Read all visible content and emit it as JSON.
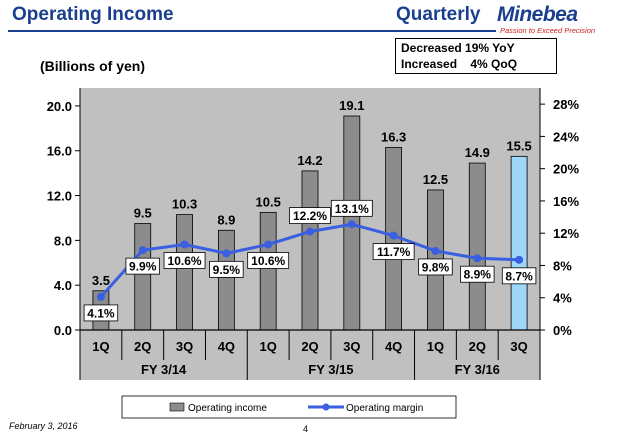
{
  "header": {
    "title": "Operating Income",
    "period": "Quarterly",
    "logo_name": "Minebea",
    "logo_tagline": "Passion to Exceed Precision"
  },
  "summary": {
    "line1": "Decreased 19% YoY",
    "line2": "Increased    4% QoQ"
  },
  "footer": {
    "date": "February 3, 2016",
    "page_number": "4"
  },
  "colors": {
    "plot_bg": "#c0c0c0",
    "bar_gray": "#8c8c8c",
    "bar_highlight": "#9fd6fa",
    "line_blue": "#3a5fe0",
    "title_blue": "#1b3f8f"
  },
  "chart_data": {
    "type": "bar",
    "unit_label": "(Billions of yen)",
    "categories": [
      "1Q",
      "2Q",
      "3Q",
      "4Q",
      "1Q",
      "2Q",
      "3Q",
      "4Q",
      "1Q",
      "2Q",
      "3Q"
    ],
    "groups": [
      {
        "label": "FY 3/14",
        "count": 4
      },
      {
        "label": "FY 3/15",
        "count": 4
      },
      {
        "label": "FY 3/16",
        "count": 3
      }
    ],
    "series": [
      {
        "name": "Operating income",
        "type": "bar",
        "axis": "left",
        "values": [
          3.5,
          9.5,
          10.3,
          8.9,
          10.5,
          14.2,
          19.1,
          16.3,
          12.5,
          14.9,
          15.5
        ],
        "labels": [
          "3.5",
          "9.5",
          "10.3",
          "8.9",
          "10.5",
          "14.2",
          "19.1",
          "16.3",
          "12.5",
          "14.9",
          "15.5"
        ],
        "highlight_index": 10
      },
      {
        "name": "Operating margin",
        "type": "line",
        "axis": "right",
        "values": [
          4.1,
          9.9,
          10.6,
          9.5,
          10.6,
          12.2,
          13.1,
          11.7,
          9.8,
          8.9,
          8.7
        ],
        "labels": [
          "4.1%",
          "9.9%",
          "10.6%",
          "9.5%",
          "10.6%",
          "12.2%",
          "13.1%",
          "11.7%",
          "9.8%",
          "8.9%",
          "8.7%"
        ]
      }
    ],
    "y_left": {
      "range": [
        0,
        21.6
      ],
      "ticks": [
        0,
        4,
        8,
        12,
        16,
        20
      ],
      "tick_labels": [
        "0.0",
        "4.0",
        "8.0",
        "12.0",
        "16.0",
        "20.0"
      ]
    },
    "y_right": {
      "range": [
        0,
        30
      ],
      "ticks": [
        0,
        4,
        8,
        12,
        16,
        20,
        24,
        28
      ],
      "tick_labels": [
        "0%",
        "4%",
        "8%",
        "12%",
        "16%",
        "20%",
        "24%",
        "28%"
      ]
    },
    "grid": false,
    "legend_position": "bottom"
  }
}
